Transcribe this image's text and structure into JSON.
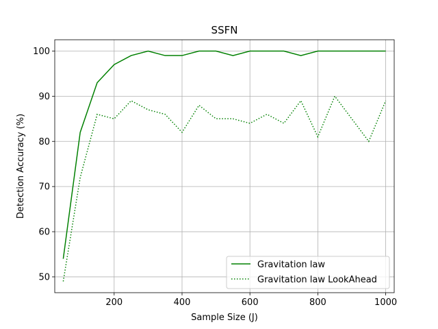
{
  "chart_data": {
    "type": "line",
    "title": "SSFN",
    "xlabel": "Sample Size (J)",
    "ylabel": "Detection Accuracy (%)",
    "xlim": [
      25,
      1025
    ],
    "ylim": [
      46.5,
      102.5
    ],
    "xticks": [
      200,
      400,
      600,
      800,
      1000
    ],
    "yticks": [
      50,
      60,
      70,
      80,
      90,
      100
    ],
    "grid": true,
    "legend_position": "lower-right",
    "x": [
      50,
      100,
      150,
      200,
      250,
      300,
      350,
      400,
      450,
      500,
      550,
      600,
      650,
      700,
      750,
      800,
      850,
      900,
      950,
      1000
    ],
    "series": [
      {
        "name": "Gravitation law",
        "color": "#008000",
        "style": "solid",
        "values": [
          54,
          82,
          93,
          97,
          99,
          100,
          99,
          99,
          100,
          100,
          99,
          100,
          100,
          100,
          99,
          100,
          100,
          100,
          100,
          100
        ]
      },
      {
        "name": "Gravitation law LookAhead",
        "color": "#008000",
        "style": "dotted",
        "values": [
          49,
          72,
          86,
          85,
          89,
          87,
          86,
          82,
          88,
          85,
          85,
          84,
          86,
          84,
          89,
          81,
          90,
          85,
          80,
          89
        ]
      }
    ]
  }
}
